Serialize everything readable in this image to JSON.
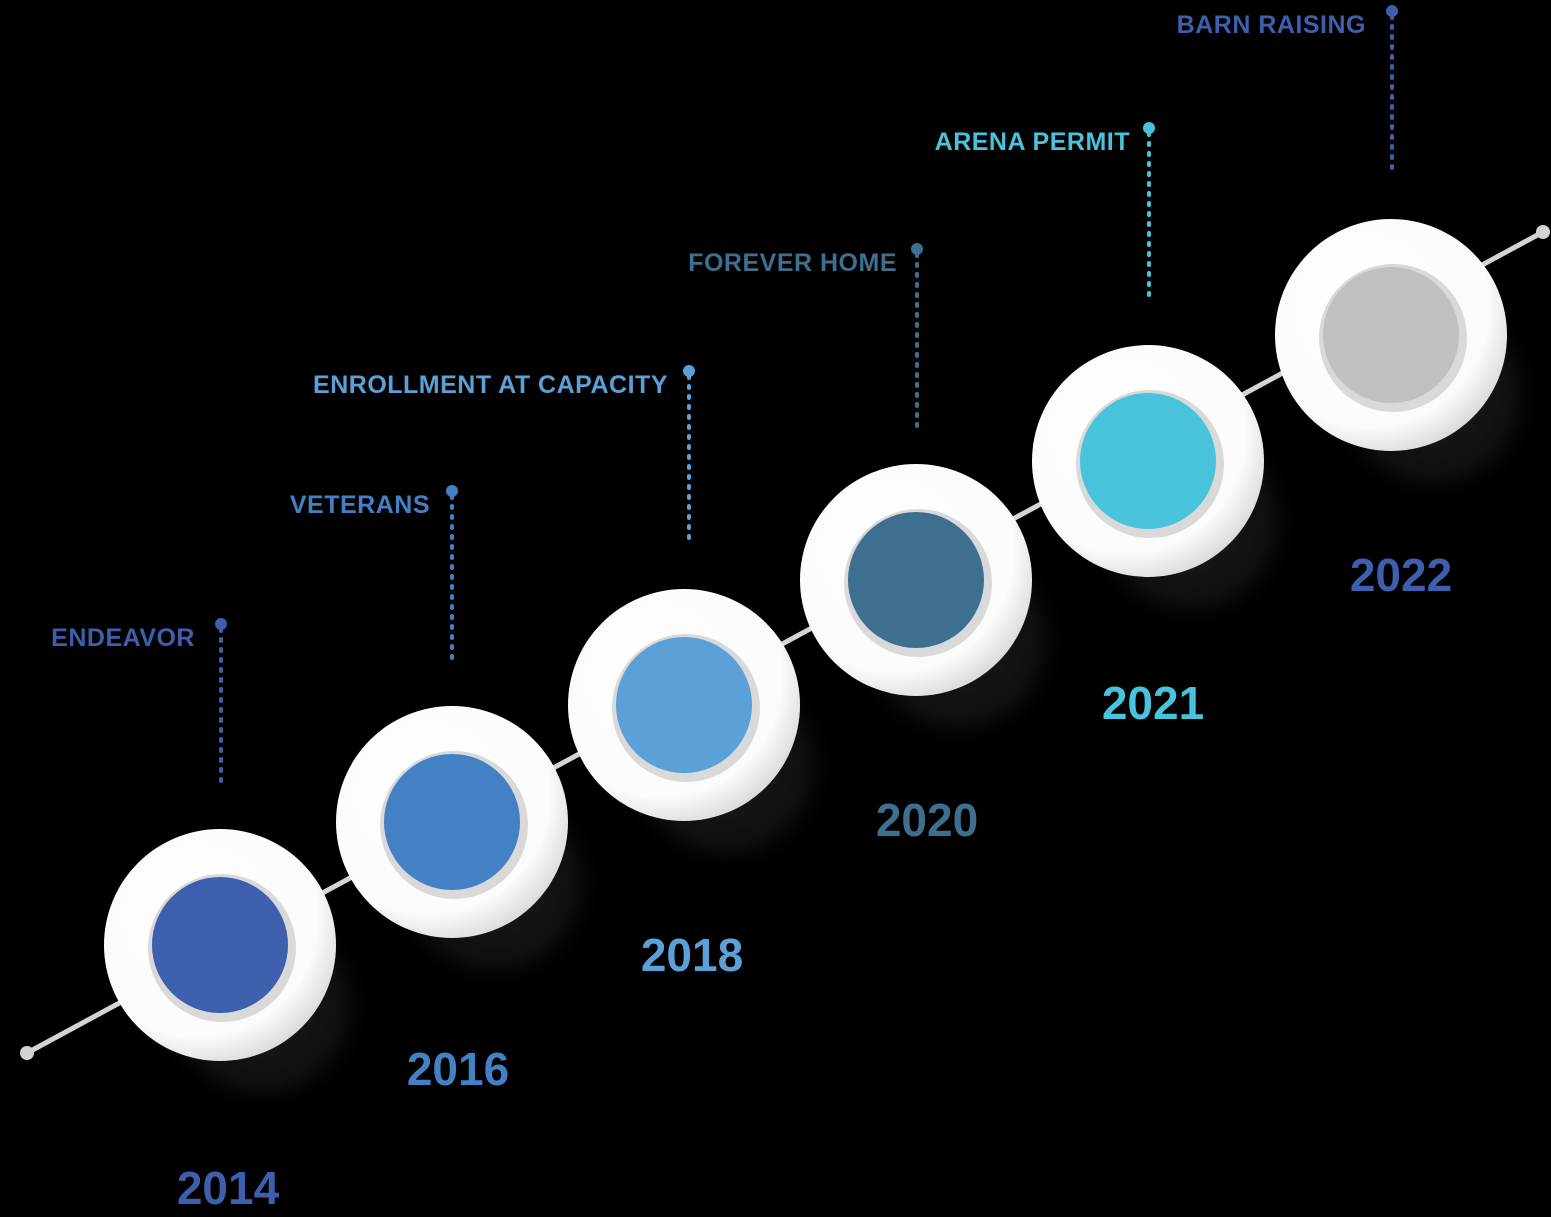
{
  "timeline": {
    "line_color": "#d4d4d4",
    "milestones": [
      {
        "year": "2014",
        "label": "ENDEAVOR",
        "color": "#3d5fae",
        "year_color": "#3d5fae",
        "label_color": "#3d5fae"
      },
      {
        "year": "2016",
        "label": "VETERANS",
        "color": "#4480c4",
        "year_color": "#4480c4",
        "label_color": "#4480c4"
      },
      {
        "year": "2018",
        "label": "ENROLLMENT AT CAPACITY",
        "color": "#5ba0d6",
        "year_color": "#5ba0d6",
        "label_color": "#5ba0d6"
      },
      {
        "year": "2020",
        "label": "FOREVER HOME",
        "color": "#3f6f8f",
        "year_color": "#3f6f8f",
        "label_color": "#3f6f8f"
      },
      {
        "year": "2021",
        "label": "ARENA PERMIT",
        "color": "#48c3db",
        "year_color": "#48c3db",
        "label_color": "#48c3db"
      },
      {
        "year": "2022",
        "label": "BARN RAISING",
        "color": "#c2bfbf",
        "year_color": "#3d5fae",
        "label_color": "#3d5fae"
      }
    ]
  }
}
